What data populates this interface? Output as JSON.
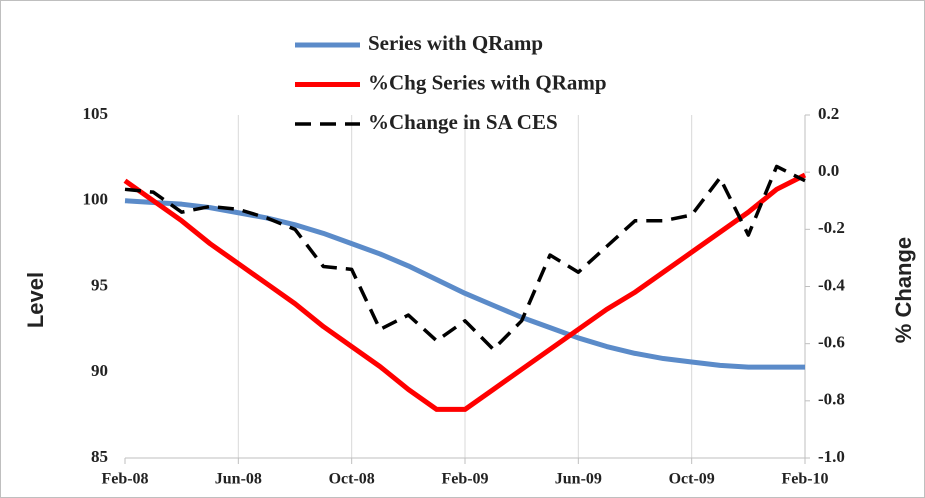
{
  "chart_data": {
    "type": "line",
    "categories": [
      "Feb-08",
      null,
      null,
      null,
      "Jun-08",
      null,
      null,
      null,
      "Oct-08",
      null,
      null,
      null,
      "Feb-09",
      null,
      null,
      null,
      "Jun-09",
      null,
      null,
      null,
      "Oct-09",
      null,
      null,
      null,
      "Feb-10"
    ],
    "series": [
      {
        "name": "Series with QRamp",
        "color": "#5b8bc9",
        "dashed": false,
        "axis": "y",
        "values": [
          100,
          99.9,
          99.8,
          99.6,
          99.3,
          99.0,
          98.6,
          98.1,
          97.5,
          96.9,
          96.2,
          95.4,
          94.6,
          93.9,
          93.2,
          92.6,
          92.0,
          91.5,
          91.1,
          90.8,
          90.6,
          90.4,
          90.3,
          90.3,
          90.3
        ]
      },
      {
        "name": "%Chg Series with QRamp",
        "color": "#ff0000",
        "dashed": false,
        "axis": "y2",
        "values": [
          -0.03,
          -0.1,
          -0.17,
          -0.25,
          -0.32,
          -0.39,
          -0.46,
          -0.54,
          -0.61,
          -0.68,
          -0.76,
          -0.83,
          -0.83,
          -0.76,
          -0.69,
          -0.62,
          -0.55,
          -0.48,
          -0.42,
          -0.35,
          -0.28,
          -0.21,
          -0.14,
          -0.06,
          -0.01
        ]
      },
      {
        "name": "%Change in SA CES",
        "color": "#000000",
        "dashed": true,
        "axis": "y2",
        "values": [
          -0.06,
          -0.07,
          -0.14,
          -0.12,
          -0.13,
          -0.16,
          -0.2,
          -0.33,
          -0.34,
          -0.55,
          -0.5,
          -0.59,
          -0.52,
          -0.62,
          -0.52,
          -0.29,
          -0.35,
          -0.26,
          -0.17,
          -0.17,
          -0.15,
          -0.02,
          -0.22,
          0.02,
          -0.03
        ]
      }
    ],
    "y_label": "Level",
    "y2_label": "% Change",
    "ylim": [
      85,
      105
    ],
    "yticks": [
      85,
      90,
      95,
      100,
      105
    ],
    "y2lim": [
      -1.0,
      0.2
    ],
    "y2ticks": [
      {
        "value": -1.0,
        "label": "-1.0"
      },
      {
        "value": -0.8,
        "label": "-0.8"
      },
      {
        "value": -0.6,
        "label": "-0.6"
      },
      {
        "value": -0.4,
        "label": "-0.4"
      },
      {
        "value": -0.2,
        "label": "-0.2"
      },
      {
        "value": 0,
        "label": "0.0"
      },
      0.2
    ],
    "grid": "x",
    "legend": "top"
  }
}
